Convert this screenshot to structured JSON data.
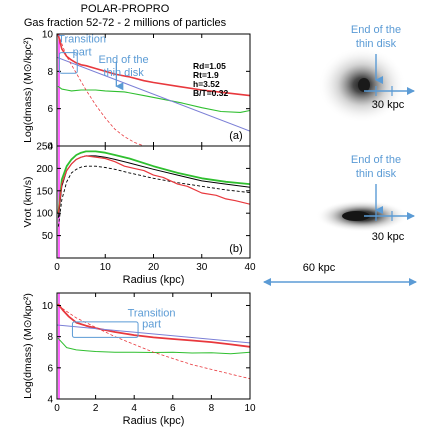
{
  "title": "POLAR-PROPRO",
  "subtitle": "Gas fraction 52-72 - 2 millions of particles",
  "colors": {
    "red": "#e8383d",
    "green": "#2fbf2f",
    "blue": "#7b7fd6",
    "annot": "#5b9bd5",
    "axis": "#000000",
    "magenta": "#ff00ff"
  },
  "chart_data": [
    {
      "id": "a",
      "type": "line",
      "panel_label": "(a)",
      "xlabel": "",
      "ylabel": "Log(dmass) (M⊙/kpc²)",
      "xlim": [
        0,
        40
      ],
      "ylim": [
        4,
        10
      ],
      "xticks": [
        0,
        10,
        20,
        30,
        40
      ],
      "xticklabels": [
        "",
        "",
        "",
        "",
        ""
      ],
      "yticks": [
        4,
        6,
        8,
        10
      ],
      "yticklabels": [
        "4",
        "6",
        "8",
        "10"
      ],
      "params": [
        "Rd=1.05",
        "Rt=1.9",
        "h=3.52",
        "B/T=0.32"
      ],
      "annotations": [
        {
          "text": "Transition",
          "x": 5.2,
          "y": 9.55
        },
        {
          "text": "part",
          "x": 5.2,
          "y": 8.85
        },
        {
          "text": "End of the",
          "x": 13.8,
          "y": 8.45
        },
        {
          "text": "thin disk",
          "x": 13.8,
          "y": 7.75
        }
      ],
      "series": [
        {
          "color": "red",
          "style": "solid",
          "width": 1.6,
          "x": [
            0.2,
            1,
            2,
            3,
            4,
            5,
            6,
            8,
            10,
            12,
            15,
            18,
            20,
            25,
            30,
            35,
            40
          ],
          "y": [
            10.0,
            9.2,
            8.8,
            8.6,
            8.45,
            8.35,
            8.3,
            8.15,
            8.0,
            7.85,
            7.7,
            7.5,
            7.4,
            7.2,
            7.0,
            6.85,
            6.7
          ]
        },
        {
          "color": "green",
          "style": "solid",
          "width": 1.1,
          "x": [
            0.2,
            1,
            2,
            3,
            5,
            8,
            10,
            14,
            18,
            22,
            26,
            30,
            34,
            38,
            40
          ],
          "y": [
            7.2,
            7.05,
            7.0,
            6.95,
            7.0,
            7.0,
            6.95,
            6.9,
            6.7,
            6.5,
            6.3,
            6.05,
            5.85,
            5.8,
            5.9
          ]
        },
        {
          "color": "blue",
          "style": "solid",
          "width": 1.0,
          "x": [
            0,
            40
          ],
          "y": [
            8.75,
            4.8
          ]
        },
        {
          "color": "red",
          "style": "dashed",
          "width": 0.8,
          "x": [
            0.2,
            2,
            4,
            6,
            8,
            10,
            12,
            14,
            16,
            18
          ],
          "y": [
            10.0,
            8.8,
            7.9,
            7.0,
            6.2,
            5.5,
            4.9,
            4.5,
            4.2,
            4.0
          ]
        }
      ]
    },
    {
      "id": "b",
      "type": "line",
      "panel_label": "(b)",
      "xlabel": "Radius (kpc)",
      "ylabel": "Vrot (km/s)",
      "xlim": [
        0,
        40
      ],
      "ylim": [
        0,
        250
      ],
      "xticks": [
        0,
        10,
        20,
        30,
        40
      ],
      "xticklabels": [
        "0",
        "10",
        "20",
        "30",
        "40"
      ],
      "yticks": [
        0,
        50,
        100,
        150,
        200,
        250
      ],
      "yticklabels": [
        "",
        "50",
        "100",
        "150",
        "200",
        "250"
      ],
      "series": [
        {
          "color": "green",
          "style": "solid",
          "width": 1.8,
          "x": [
            0.3,
            1,
            2,
            3,
            4,
            5,
            6,
            8,
            10,
            12,
            15,
            20,
            25,
            30,
            35,
            40
          ],
          "y": [
            100,
            175,
            205,
            220,
            230,
            235,
            238,
            238,
            235,
            230,
            222,
            205,
            190,
            178,
            170,
            165
          ]
        },
        {
          "color": "axis",
          "style": "solid",
          "width": 1.0,
          "x": [
            0.3,
            1,
            2,
            3,
            4,
            5,
            6,
            8,
            10,
            12,
            15,
            20,
            25,
            30,
            35,
            40
          ],
          "y": [
            90,
            160,
            195,
            210,
            220,
            225,
            228,
            228,
            225,
            220,
            212,
            198,
            185,
            172,
            165,
            158
          ]
        },
        {
          "color": "axis",
          "style": "dashed",
          "width": 0.9,
          "x": [
            0.3,
            1,
            2,
            3,
            4,
            5,
            6,
            8,
            10,
            12,
            15,
            20,
            25,
            30,
            35,
            40
          ],
          "y": [
            70,
            130,
            170,
            190,
            198,
            203,
            205,
            205,
            202,
            198,
            190,
            178,
            168,
            160,
            152,
            146
          ]
        },
        {
          "color": "red",
          "style": "solid",
          "width": 1.2,
          "x": [
            0.3,
            1,
            2,
            3,
            4,
            5,
            6,
            8,
            10,
            12,
            14,
            16,
            18,
            20,
            22,
            25,
            27,
            30,
            33,
            35,
            37,
            40
          ],
          "y": [
            100,
            165,
            195,
            210,
            220,
            225,
            228,
            225,
            222,
            215,
            205,
            200,
            195,
            185,
            180,
            165,
            160,
            145,
            140,
            132,
            128,
            120
          ]
        }
      ]
    },
    {
      "id": "c",
      "type": "line",
      "panel_label": "",
      "xlabel": "Radius (kpc)",
      "ylabel": "Log(dmass) (M⊙/kpc²)",
      "xlim": [
        0,
        10
      ],
      "ylim": [
        4,
        10.8
      ],
      "xticks": [
        0,
        2,
        4,
        6,
        8,
        10
      ],
      "xticklabels": [
        "0",
        "2",
        "4",
        "6",
        "8",
        "10"
      ],
      "yticks": [
        4,
        6,
        8,
        10
      ],
      "yticklabels": [
        "4",
        "6",
        "8",
        "10"
      ],
      "annotations": [
        {
          "text": "Transition",
          "x": 4.9,
          "y": 9.3
        },
        {
          "text": "part",
          "x": 4.9,
          "y": 8.6
        }
      ],
      "series": [
        {
          "color": "red",
          "style": "solid",
          "width": 1.8,
          "x": [
            0.05,
            0.3,
            0.6,
            1,
            1.5,
            2,
            3,
            4,
            5,
            6,
            7,
            8,
            9,
            10
          ],
          "y": [
            10.1,
            9.7,
            9.3,
            8.9,
            8.7,
            8.55,
            8.3,
            8.1,
            7.95,
            7.85,
            7.75,
            7.65,
            7.5,
            7.35
          ]
        },
        {
          "color": "green",
          "style": "solid",
          "width": 1.0,
          "x": [
            0.05,
            0.5,
            1,
            1.5,
            2,
            3,
            4,
            5,
            6,
            7,
            8,
            9,
            10
          ],
          "y": [
            7.9,
            7.3,
            7.15,
            7.1,
            7.05,
            7.0,
            7.0,
            6.98,
            7.0,
            6.95,
            6.97,
            6.9,
            7.0
          ]
        },
        {
          "color": "blue",
          "style": "solid",
          "width": 1.0,
          "x": [
            0,
            10
          ],
          "y": [
            8.75,
            7.6
          ]
        },
        {
          "color": "red",
          "style": "dashed",
          "width": 0.8,
          "x": [
            0.05,
            1,
            2,
            3,
            4,
            5,
            6,
            7,
            8,
            9,
            10
          ],
          "y": [
            10.0,
            9.2,
            8.6,
            8.0,
            7.5,
            7.0,
            6.6,
            6.2,
            5.9,
            5.6,
            5.3
          ]
        }
      ]
    }
  ],
  "images": {
    "top": {
      "annotation": [
        "End of the",
        "thin disk"
      ],
      "scale_label": "30 kpc"
    },
    "bottom": {
      "annotation": [
        "End of the",
        "thin disk"
      ],
      "scale_label": "30 kpc"
    },
    "scale_bar_label": "60 kpc"
  }
}
